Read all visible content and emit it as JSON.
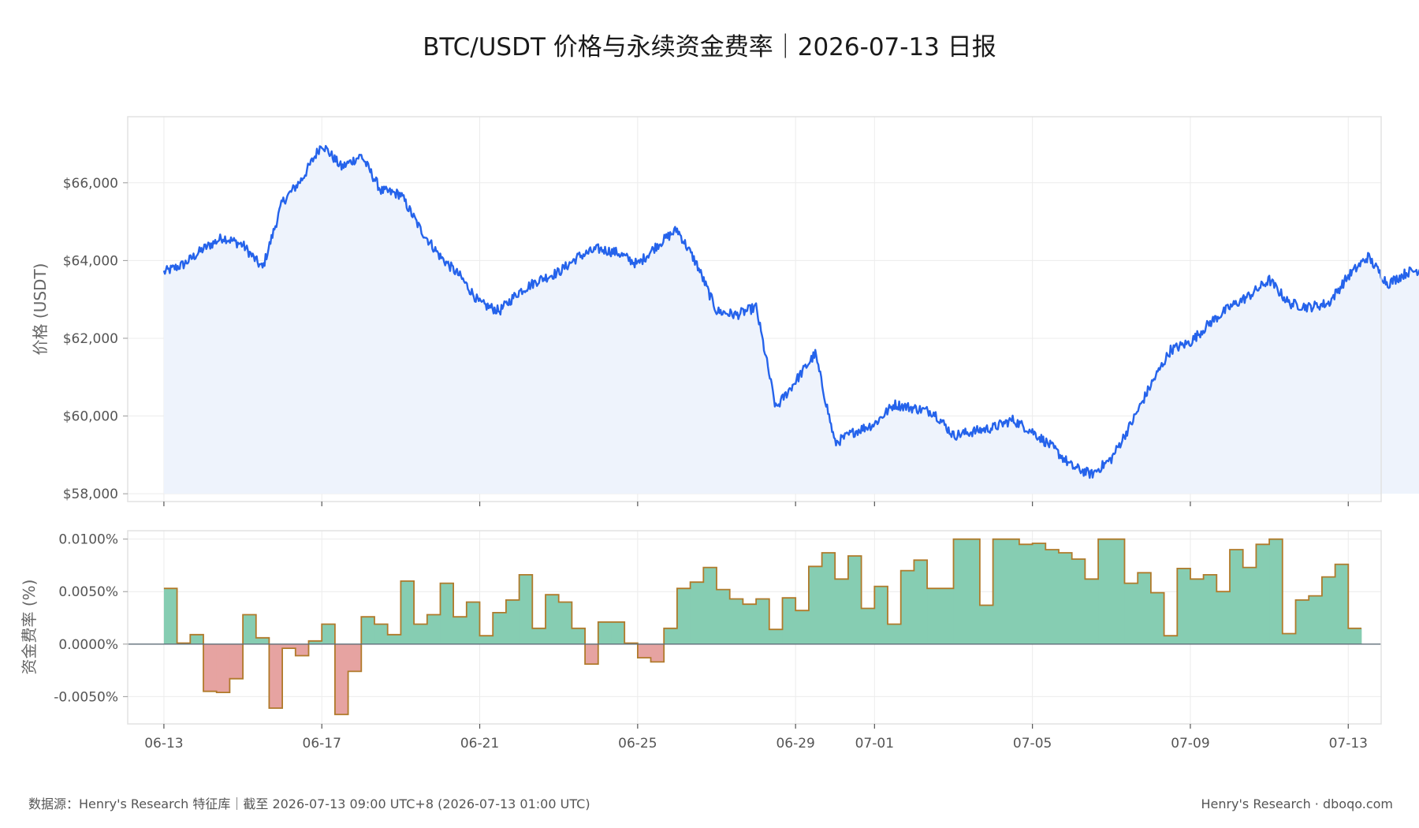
{
  "title": "BTC/USDT 价格与永续资金费率｜2026-07-13 日报",
  "footer_left": "数据源：Henry's Research 特征库｜截至 2026-07-13 09:00 UTC+8 (2026-07-13 01:00 UTC)",
  "footer_right": "Henry's Research · dboqo.com",
  "colors": {
    "price_line": "#2563eb",
    "price_fill": "#eef3fc",
    "positive_fill": "#86cdb2",
    "negative_fill": "#e6a3a1",
    "funding_outline": "#b07a2a",
    "zero_line": "#5f6e78"
  },
  "chart_data": [
    {
      "type": "area",
      "ylabel": "价格 (USDT)",
      "ylim": [
        57800,
        67700
      ],
      "yticks": [
        58000,
        60000,
        62000,
        64000,
        66000
      ],
      "ytick_labels": [
        "$58,000",
        "$60,000",
        "$62,000",
        "$64,000",
        "$66,000"
      ],
      "xlim": [
        "2026-06-12T02:00",
        "2026-07-13T20:00"
      ],
      "xticks": [
        "2026-06-13",
        "2026-06-17",
        "2026-06-21",
        "2026-06-25",
        "2026-06-29",
        "2026-07-01",
        "2026-07-05",
        "2026-07-09",
        "2026-07-13"
      ],
      "grid": true,
      "series": [
        {
          "x_start": "2026-06-13T00:00",
          "step_hours": 12,
          "values": [
            63700,
            63900,
            64300,
            64600,
            64400,
            63800,
            65500,
            66100,
            67000,
            66400,
            66700,
            65800,
            65700,
            64800,
            64100,
            63600,
            62900,
            62700,
            63200,
            63500,
            63700,
            64100,
            64300,
            64200,
            63900,
            64400,
            64800,
            63900,
            62700,
            62600,
            62800,
            60200,
            60900,
            61600,
            59300,
            59600,
            59800,
            60300,
            60200,
            60100,
            59500,
            59600,
            59700,
            59900,
            59600,
            59200,
            58700,
            58500,
            58900,
            59800,
            60800,
            61700,
            61900,
            62400,
            62800,
            63100,
            63500,
            62900,
            62800,
            62900,
            63600,
            64100,
            63400,
            63700,
            63800,
            63100,
            62300,
            62500,
            62800,
            63400,
            63800,
            64300,
            64200,
            64200,
            64400,
            64000,
            64100,
            64000,
            63900
          ],
          "last_value": 63900
        }
      ]
    },
    {
      "type": "bar",
      "ylabel": "资金费率 (%)",
      "ylim": [
        -0.0076,
        0.0108
      ],
      "yticks": [
        -0.005,
        0.0,
        0.005,
        0.01
      ],
      "ytick_labels": [
        "-0.0050%",
        "0.0000%",
        "0.0050%",
        "0.0100%"
      ],
      "xtick_labels": [
        "06-13",
        "06-17",
        "06-21",
        "06-25",
        "06-29",
        "07-01",
        "07-05",
        "07-09",
        "07-13"
      ],
      "x_start": "2026-06-13T00:00",
      "step_hours": 8,
      "grid": true,
      "series": [
        {
          "values": [
            0.0053,
            0.0001,
            0.0009,
            -0.0045,
            -0.0046,
            -0.0033,
            0.0028,
            0.0006,
            -0.0061,
            -0.0004,
            -0.0011,
            0.0003,
            0.0019,
            -0.0067,
            -0.0026,
            0.0026,
            0.0019,
            0.0009,
            0.006,
            0.0019,
            0.0028,
            0.0058,
            0.0026,
            0.004,
            0.0008,
            0.003,
            0.0042,
            0.0066,
            0.0015,
            0.0047,
            0.004,
            0.0015,
            -0.0019,
            0.0021,
            0.0021,
            0.0001,
            -0.0013,
            -0.0017,
            0.0015,
            0.0053,
            0.0059,
            0.0073,
            0.0052,
            0.0043,
            0.0038,
            0.0043,
            0.0014,
            0.0044,
            0.0032,
            0.0074,
            0.0087,
            0.0062,
            0.0084,
            0.0034,
            0.0055,
            0.0019,
            0.007,
            0.008,
            0.0053,
            0.0053,
            0.01,
            0.01,
            0.0037,
            0.01,
            0.01,
            0.0095,
            0.0096,
            0.009,
            0.0087,
            0.0081,
            0.0062,
            0.01,
            0.01,
            0.0058,
            0.0068,
            0.0049,
            0.0008,
            0.0072,
            0.0062,
            0.0066,
            0.005,
            0.009,
            0.0073,
            0.0095,
            0.01,
            0.001,
            0.0042,
            0.0046,
            0.0064,
            0.0076,
            0.0015
          ]
        }
      ]
    }
  ]
}
